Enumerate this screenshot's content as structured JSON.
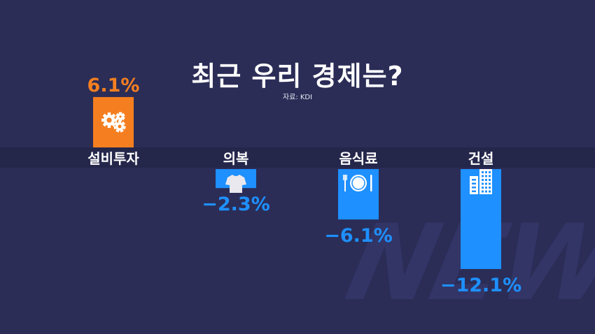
{
  "header": {
    "title": "최근 우리 경제는?",
    "source": "자료: KDI"
  },
  "watermark_text": "NEWS",
  "colors": {
    "background": "#2b2d57",
    "band": "#24264a",
    "positive": "#f57f20",
    "negative": "#1e90ff",
    "category_text": "#ffffff"
  },
  "chart_data": {
    "type": "bar",
    "categories": [
      "설비투자",
      "의복",
      "음식료",
      "건설"
    ],
    "values": [
      6.1,
      -2.3,
      -6.1,
      -12.1
    ],
    "value_labels": [
      "6.1%",
      "−2.3%",
      "−6.1%",
      "−12.1%"
    ],
    "icons": [
      "gears-icon",
      "shirt-icon",
      "plate-icon",
      "building-icon"
    ],
    "title": "최근 우리 경제는?",
    "unit": "%",
    "ylim": [
      -12.1,
      6.1
    ],
    "grid": false,
    "legend": "none"
  }
}
